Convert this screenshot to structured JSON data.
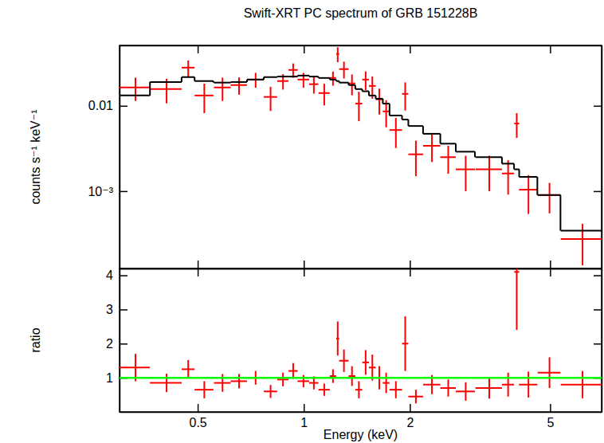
{
  "chart_data": [
    {
      "type": "scatter",
      "title": "Swift-XRT PC spectrum of GRB 151228B",
      "y_label": "counts s⁻¹ keV⁻¹",
      "log": true,
      "tick_labels": "y",
      "xlim": [
        0.3,
        7
      ],
      "ylim": [
        0.000124,
        0.051
      ],
      "xticks": [
        0.5,
        1,
        2,
        5
      ],
      "yticks": [
        0.01,
        {
          "value": 0.001,
          "label": "10⁻³"
        }
      ],
      "series": [
        {
          "type": "scatter",
          "color": "#ff0000",
          "x": [
            0.333,
            0.408,
            0.47,
            0.522,
            0.588,
            0.655,
            0.73,
            0.805,
            0.873,
            0.933,
            0.998,
            1.068,
            1.143,
            1.21,
            1.248,
            1.3,
            1.37,
            1.433,
            1.498,
            1.565,
            1.638,
            1.713,
            1.825,
            1.94,
            2.08,
            2.31,
            2.57,
            2.88,
            3.36,
            3.8,
            4.02,
            4.34,
            4.98,
            6.18
          ],
          "x_err": [
            0.033,
            0.042,
            0.02,
            0.032,
            0.032,
            0.035,
            0.04,
            0.035,
            0.032,
            0.028,
            0.038,
            0.032,
            0.042,
            0.025,
            0.012,
            0.04,
            0.03,
            0.032,
            0.032,
            0.035,
            0.038,
            0.038,
            0.075,
            0.04,
            0.1,
            0.13,
            0.13,
            0.18,
            0.29,
            0.15,
            0.065,
            0.26,
            0.37,
            0.82
          ],
          "values": [
            0.0164,
            0.0157,
            0.028,
            0.0132,
            0.0164,
            0.0175,
            0.0203,
            0.0127,
            0.0195,
            0.0263,
            0.0203,
            0.0179,
            0.0141,
            0.0212,
            0.0405,
            0.0269,
            0.0183,
            0.0106,
            0.0203,
            0.0171,
            0.0119,
            0.0086,
            0.0052,
            0.0138,
            0.0027,
            0.0034,
            0.0025,
            0.0018,
            0.0018,
            0.00161,
            0.0062,
            0.00104,
            0.0009,
            0.000275
          ],
          "y_err": [
            0.005,
            0.005,
            0.006,
            0.005,
            0.005,
            0.004,
            0.004,
            0.004,
            0.004,
            0.005,
            0.004,
            0.004,
            0.004,
            0.004,
            0.008,
            0.006,
            0.005,
            0.004,
            0.005,
            0.005,
            0.004,
            0.003,
            0.002,
            0.005,
            0.0012,
            0.0012,
            0.0009,
            0.0008,
            0.0008,
            0.0007,
            0.002,
            0.0005,
            0.00035,
            0.00014
          ]
        },
        {
          "type": "step",
          "color": "#000000",
          "x": [
            0.333,
            0.408,
            0.47,
            0.522,
            0.588,
            0.655,
            0.73,
            0.805,
            0.873,
            0.933,
            0.998,
            1.068,
            1.143,
            1.21,
            1.248,
            1.3,
            1.37,
            1.433,
            1.498,
            1.565,
            1.638,
            1.713,
            1.825,
            1.94,
            2.08,
            2.31,
            2.57,
            2.88,
            3.36,
            3.8,
            4.02,
            4.34,
            4.98,
            6.18
          ],
          "x_err": [
            0.033,
            0.042,
            0.02,
            0.032,
            0.032,
            0.035,
            0.04,
            0.035,
            0.032,
            0.028,
            0.038,
            0.032,
            0.042,
            0.025,
            0.012,
            0.04,
            0.03,
            0.032,
            0.032,
            0.035,
            0.038,
            0.038,
            0.075,
            0.04,
            0.1,
            0.13,
            0.13,
            0.18,
            0.29,
            0.15,
            0.065,
            0.26,
            0.37,
            0.82
          ],
          "values": [
            0.0132,
            0.019,
            0.0217,
            0.0195,
            0.0187,
            0.019,
            0.0203,
            0.0217,
            0.022,
            0.022,
            0.0226,
            0.022,
            0.0212,
            0.0203,
            0.0195,
            0.0187,
            0.0175,
            0.0157,
            0.0148,
            0.0132,
            0.0121,
            0.0106,
            0.0077,
            0.0069,
            0.0058,
            0.0047,
            0.0036,
            0.0029,
            0.0025,
            0.0021,
            0.0018,
            0.00147,
            0.0009,
            0.000344
          ]
        }
      ]
    },
    {
      "type": "scatter",
      "x_label": "Energy (keV)",
      "y_label": "ratio",
      "log": "x",
      "xlim": [
        0.3,
        7
      ],
      "ylim": [
        0,
        4.2
      ],
      "xticks": [
        0.5,
        1,
        2,
        5
      ],
      "yticks": [
        1,
        2,
        3,
        4
      ],
      "series": [
        {
          "type": "scatter",
          "color": "#ff0000",
          "x": [
            0.333,
            0.408,
            0.47,
            0.522,
            0.588,
            0.655,
            0.73,
            0.805,
            0.873,
            0.933,
            0.998,
            1.068,
            1.143,
            1.21,
            1.248,
            1.3,
            1.37,
            1.433,
            1.498,
            1.565,
            1.638,
            1.713,
            1.825,
            1.94,
            2.08,
            2.31,
            2.57,
            2.88,
            3.36,
            3.8,
            4.02,
            4.34,
            4.98,
            6.18
          ],
          "x_err": [
            0.033,
            0.042,
            0.02,
            0.032,
            0.032,
            0.035,
            0.04,
            0.035,
            0.032,
            0.028,
            0.038,
            0.032,
            0.042,
            0.025,
            0.012,
            0.04,
            0.03,
            0.032,
            0.032,
            0.035,
            0.038,
            0.038,
            0.075,
            0.04,
            0.1,
            0.13,
            0.13,
            0.18,
            0.29,
            0.15,
            0.065,
            0.26,
            0.37,
            0.82
          ],
          "values": [
            1.3,
            0.85,
            1.25,
            0.65,
            0.85,
            0.9,
            1.0,
            0.6,
            0.95,
            1.2,
            0.9,
            0.85,
            0.65,
            1.05,
            2.15,
            1.5,
            1.05,
            0.65,
            1.45,
            1.3,
            1.0,
            0.85,
            0.65,
            2.0,
            0.45,
            0.8,
            0.7,
            0.6,
            0.7,
            0.8,
            4.1,
            0.8,
            1.15,
            0.8
          ],
          "y_err": [
            0.4,
            0.27,
            0.27,
            0.25,
            0.26,
            0.21,
            0.2,
            0.19,
            0.2,
            0.23,
            0.18,
            0.19,
            0.18,
            0.2,
            0.5,
            0.33,
            0.29,
            0.25,
            0.36,
            0.38,
            0.34,
            0.3,
            0.25,
            0.8,
            0.2,
            0.28,
            0.25,
            0.27,
            0.31,
            0.35,
            1.7,
            0.38,
            0.45,
            0.4
          ]
        },
        {
          "type": "hline",
          "color": "#00ff00",
          "values": [
            1
          ]
        }
      ]
    }
  ]
}
